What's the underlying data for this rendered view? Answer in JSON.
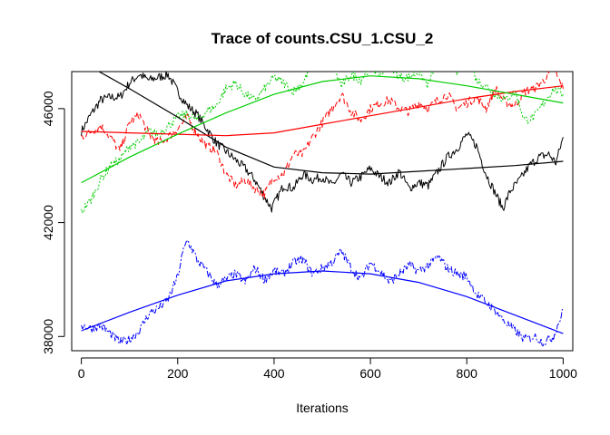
{
  "chart_data": {
    "type": "line",
    "title": "Trace of counts.CSU_1.CSU_2",
    "xlabel": "Iterations",
    "ylabel": "",
    "xlim": [
      -20,
      1020
    ],
    "ylim": [
      37500,
      47300
    ],
    "x_ticks": [
      0,
      200,
      400,
      600,
      800,
      1000
    ],
    "y_ticks": [
      38000,
      42000,
      46000
    ],
    "x_tick_labels": [
      "0",
      "200",
      "400",
      "600",
      "800",
      "1000"
    ],
    "y_tick_labels": [
      "38000",
      "42000",
      "46000"
    ],
    "grid": false,
    "legend": "none",
    "series": [
      {
        "color": "#000000",
        "dash": "solid",
        "trace": [
          [
            0,
            45200
          ],
          [
            20,
            45800
          ],
          [
            40,
            46300
          ],
          [
            60,
            46400
          ],
          [
            80,
            46400
          ],
          [
            100,
            46900
          ],
          [
            120,
            47200
          ],
          [
            140,
            47000
          ],
          [
            160,
            47100
          ],
          [
            180,
            47200
          ],
          [
            200,
            46600
          ],
          [
            220,
            46100
          ],
          [
            240,
            45800
          ],
          [
            260,
            45300
          ],
          [
            280,
            44800
          ],
          [
            300,
            44500
          ],
          [
            320,
            44200
          ],
          [
            340,
            43900
          ],
          [
            360,
            43500
          ],
          [
            380,
            42900
          ],
          [
            395,
            42500
          ],
          [
            420,
            43300
          ],
          [
            440,
            43200
          ],
          [
            460,
            43700
          ],
          [
            480,
            43500
          ],
          [
            500,
            43600
          ],
          [
            520,
            43300
          ],
          [
            540,
            43700
          ],
          [
            560,
            43400
          ],
          [
            580,
            43600
          ],
          [
            600,
            43900
          ],
          [
            620,
            43600
          ],
          [
            640,
            43400
          ],
          [
            660,
            43800
          ],
          [
            680,
            43200
          ],
          [
            700,
            43400
          ],
          [
            720,
            43300
          ],
          [
            740,
            43800
          ],
          [
            760,
            44300
          ],
          [
            780,
            44600
          ],
          [
            800,
            45100
          ],
          [
            820,
            44700
          ],
          [
            840,
            43700
          ],
          [
            860,
            43000
          ],
          [
            875,
            42500
          ],
          [
            890,
            43100
          ],
          [
            910,
            43500
          ],
          [
            930,
            44000
          ],
          [
            950,
            44300
          ],
          [
            970,
            44400
          ],
          [
            985,
            44100
          ],
          [
            1000,
            45000
          ]
        ],
        "smooth": [
          [
            0,
            47650
          ],
          [
            100,
            46700
          ],
          [
            200,
            45700
          ],
          [
            300,
            44650
          ],
          [
            400,
            43950
          ],
          [
            500,
            43750
          ],
          [
            600,
            43700
          ],
          [
            700,
            43800
          ],
          [
            800,
            43900
          ],
          [
            900,
            44000
          ],
          [
            1000,
            44150
          ]
        ]
      },
      {
        "color": "#ff0000",
        "dash": "6,3",
        "trace": [
          [
            0,
            45000
          ],
          [
            20,
            45200
          ],
          [
            40,
            45400
          ],
          [
            60,
            45000
          ],
          [
            80,
            44500
          ],
          [
            100,
            45500
          ],
          [
            120,
            45800
          ],
          [
            140,
            45100
          ],
          [
            160,
            44800
          ],
          [
            180,
            45000
          ],
          [
            200,
            45300
          ],
          [
            220,
            45700
          ],
          [
            240,
            45100
          ],
          [
            260,
            44700
          ],
          [
            280,
            44500
          ],
          [
            300,
            43700
          ],
          [
            320,
            43300
          ],
          [
            340,
            43500
          ],
          [
            360,
            43200
          ],
          [
            380,
            43000
          ],
          [
            400,
            43600
          ],
          [
            420,
            43700
          ],
          [
            440,
            44400
          ],
          [
            460,
            44400
          ],
          [
            480,
            45000
          ],
          [
            500,
            45500
          ],
          [
            520,
            46000
          ],
          [
            540,
            46500
          ],
          [
            560,
            45900
          ],
          [
            580,
            45600
          ],
          [
            600,
            46000
          ],
          [
            620,
            46200
          ],
          [
            640,
            46300
          ],
          [
            660,
            46000
          ],
          [
            680,
            45900
          ],
          [
            700,
            46200
          ],
          [
            720,
            46000
          ],
          [
            740,
            46300
          ],
          [
            760,
            46500
          ],
          [
            780,
            46000
          ],
          [
            800,
            46200
          ],
          [
            820,
            46400
          ],
          [
            840,
            46000
          ],
          [
            860,
            46700
          ],
          [
            880,
            46200
          ],
          [
            900,
            46100
          ],
          [
            920,
            46600
          ],
          [
            940,
            46700
          ],
          [
            960,
            47000
          ],
          [
            980,
            47400
          ],
          [
            1000,
            46700
          ]
        ],
        "smooth": [
          [
            0,
            45200
          ],
          [
            100,
            45150
          ],
          [
            200,
            45100
          ],
          [
            300,
            45050
          ],
          [
            400,
            45150
          ],
          [
            500,
            45450
          ],
          [
            600,
            45750
          ],
          [
            700,
            46050
          ],
          [
            800,
            46350
          ],
          [
            900,
            46600
          ],
          [
            1000,
            46800
          ]
        ]
      },
      {
        "color": "#00cd00",
        "dash": "2,2",
        "trace": [
          [
            0,
            42400
          ],
          [
            20,
            42800
          ],
          [
            40,
            43500
          ],
          [
            60,
            44000
          ],
          [
            80,
            44200
          ],
          [
            100,
            44700
          ],
          [
            120,
            44800
          ],
          [
            140,
            45200
          ],
          [
            160,
            45100
          ],
          [
            180,
            45400
          ],
          [
            200,
            45700
          ],
          [
            220,
            45800
          ],
          [
            240,
            45600
          ],
          [
            260,
            45900
          ],
          [
            280,
            46100
          ],
          [
            300,
            46700
          ],
          [
            320,
            46900
          ],
          [
            340,
            46500
          ],
          [
            360,
            46300
          ],
          [
            380,
            46700
          ],
          [
            400,
            47100
          ],
          [
            420,
            46900
          ],
          [
            440,
            46600
          ],
          [
            460,
            46900
          ],
          [
            480,
            47600
          ],
          [
            500,
            47900
          ],
          [
            520,
            47600
          ],
          [
            540,
            46800
          ],
          [
            560,
            47200
          ],
          [
            580,
            47000
          ],
          [
            600,
            47500
          ],
          [
            620,
            47200
          ],
          [
            640,
            47600
          ],
          [
            660,
            47100
          ],
          [
            680,
            47100
          ],
          [
            700,
            47300
          ],
          [
            720,
            46800
          ],
          [
            740,
            47900
          ],
          [
            760,
            47700
          ],
          [
            780,
            47300
          ],
          [
            800,
            48000
          ],
          [
            820,
            47000
          ],
          [
            840,
            46800
          ],
          [
            860,
            46500
          ],
          [
            880,
            46300
          ],
          [
            900,
            46600
          ],
          [
            920,
            45600
          ],
          [
            940,
            45700
          ],
          [
            960,
            46200
          ],
          [
            980,
            46700
          ],
          [
            1000,
            46500
          ]
        ],
        "smooth": [
          [
            0,
            43400
          ],
          [
            100,
            44300
          ],
          [
            200,
            45100
          ],
          [
            300,
            45850
          ],
          [
            400,
            46500
          ],
          [
            500,
            46950
          ],
          [
            600,
            47150
          ],
          [
            700,
            47050
          ],
          [
            800,
            46800
          ],
          [
            900,
            46500
          ],
          [
            1000,
            46200
          ]
        ]
      },
      {
        "color": "#0000ff",
        "dash": "7,2,2,2",
        "trace": [
          [
            0,
            38400
          ],
          [
            20,
            38300
          ],
          [
            40,
            38400
          ],
          [
            60,
            38100
          ],
          [
            80,
            37800
          ],
          [
            100,
            37900
          ],
          [
            120,
            38200
          ],
          [
            140,
            38800
          ],
          [
            160,
            39000
          ],
          [
            180,
            39300
          ],
          [
            200,
            40100
          ],
          [
            210,
            40900
          ],
          [
            220,
            41400
          ],
          [
            240,
            40700
          ],
          [
            260,
            40300
          ],
          [
            280,
            39800
          ],
          [
            300,
            40000
          ],
          [
            320,
            40200
          ],
          [
            340,
            39900
          ],
          [
            360,
            40400
          ],
          [
            380,
            40000
          ],
          [
            400,
            40300
          ],
          [
            420,
            40200
          ],
          [
            440,
            40600
          ],
          [
            460,
            40700
          ],
          [
            480,
            40200
          ],
          [
            500,
            40400
          ],
          [
            520,
            40600
          ],
          [
            540,
            41000
          ],
          [
            560,
            40400
          ],
          [
            580,
            40000
          ],
          [
            600,
            40600
          ],
          [
            620,
            40300
          ],
          [
            640,
            39900
          ],
          [
            660,
            40200
          ],
          [
            680,
            40500
          ],
          [
            700,
            40300
          ],
          [
            720,
            40500
          ],
          [
            740,
            40800
          ],
          [
            760,
            40400
          ],
          [
            780,
            40200
          ],
          [
            800,
            40100
          ],
          [
            820,
            39500
          ],
          [
            840,
            39200
          ],
          [
            860,
            38900
          ],
          [
            880,
            38500
          ],
          [
            900,
            38200
          ],
          [
            920,
            37900
          ],
          [
            940,
            38000
          ],
          [
            960,
            37800
          ],
          [
            980,
            38000
          ],
          [
            1000,
            38900
          ]
        ],
        "smooth": [
          [
            0,
            38200
          ],
          [
            100,
            38850
          ],
          [
            200,
            39450
          ],
          [
            300,
            39950
          ],
          [
            400,
            40200
          ],
          [
            500,
            40300
          ],
          [
            600,
            40200
          ],
          [
            700,
            39900
          ],
          [
            800,
            39400
          ],
          [
            900,
            38750
          ],
          [
            1000,
            38100
          ]
        ]
      }
    ]
  }
}
